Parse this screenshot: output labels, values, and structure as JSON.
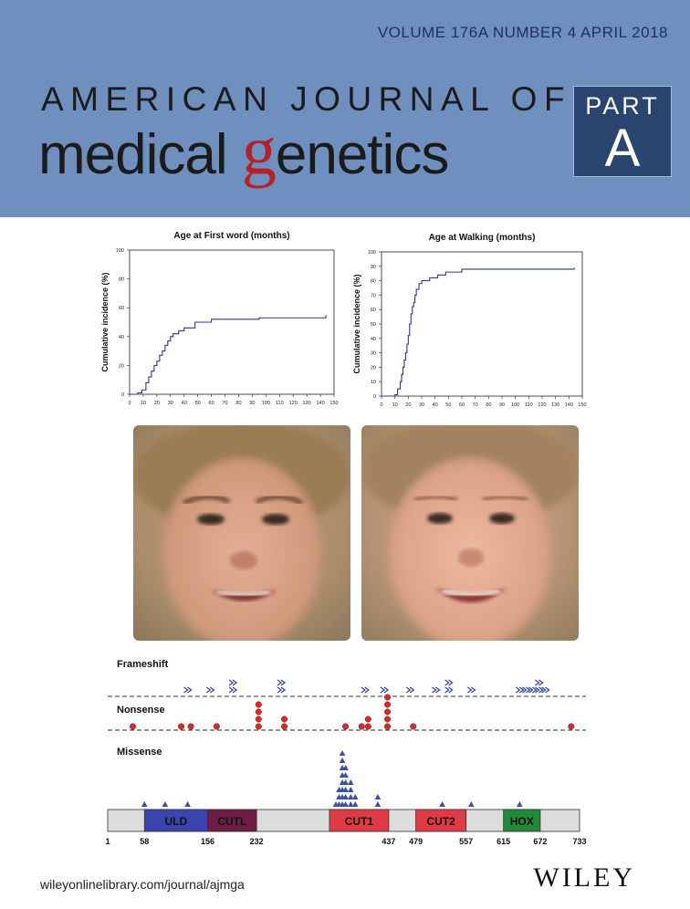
{
  "header": {
    "issue": "VOLUME 176A   NUMBER 4   APRIL 2018",
    "title_line1": "AMERICAN JOURNAL OF",
    "title_line2_pre": "medical ",
    "title_line2_g": "g",
    "title_line2_post": "enetics",
    "part_label": "PART",
    "part_letter": "A"
  },
  "colors": {
    "banner": "#6f8fbf",
    "accent_red": "#b3222a",
    "series": "#2b3a8f",
    "marker_red": "#cc2f2f",
    "marker_blue": "#3d4fa3"
  },
  "chart_data": [
    {
      "type": "line",
      "title": "Age at First word (months)",
      "ylabel": "Cumulative incidence (%)",
      "xlabel": "",
      "xlim": [
        0,
        150
      ],
      "ylim": [
        0,
        100
      ],
      "xticks": [
        0,
        10,
        20,
        30,
        40,
        50,
        60,
        70,
        80,
        90,
        100,
        110,
        120,
        130,
        140,
        150
      ],
      "yticks": [
        0,
        20,
        40,
        60,
        80,
        100
      ],
      "grid": false,
      "step": true,
      "x": [
        0,
        6,
        9,
        12,
        14,
        16,
        18,
        20,
        22,
        24,
        26,
        28,
        30,
        32,
        36,
        40,
        48,
        60,
        95,
        144
      ],
      "y": [
        0,
        1,
        3,
        8,
        12,
        16,
        20,
        23,
        27,
        30,
        34,
        37,
        40,
        42,
        44,
        46,
        50,
        52,
        53,
        55
      ]
    },
    {
      "type": "line",
      "title": "Age at Walking (months)",
      "ylabel": "Cumulative incidence (%)",
      "xlabel": "",
      "xlim": [
        0,
        150
      ],
      "ylim": [
        0,
        100
      ],
      "xticks": [
        0,
        10,
        20,
        30,
        40,
        50,
        60,
        70,
        80,
        90,
        100,
        110,
        120,
        130,
        140,
        150
      ],
      "yticks": [
        0,
        10,
        20,
        30,
        40,
        50,
        60,
        70,
        80,
        90,
        100
      ],
      "grid": false,
      "step": true,
      "x": [
        0,
        10,
        12,
        14,
        15,
        16,
        17,
        18,
        19,
        20,
        21,
        22,
        23,
        24,
        25,
        26,
        28,
        30,
        36,
        42,
        48,
        60,
        144
      ],
      "y": [
        0,
        1,
        5,
        10,
        15,
        20,
        25,
        30,
        36,
        42,
        50,
        57,
        62,
        65,
        70,
        74,
        78,
        80,
        82,
        84,
        86,
        88,
        89
      ]
    }
  ],
  "faces": [
    {
      "name": "composite-face-left",
      "expression": "smile"
    },
    {
      "name": "composite-face-right",
      "expression": "smile"
    }
  ],
  "protein": {
    "categories": [
      "Frameshift",
      "Nonsense",
      "Missense"
    ],
    "domains": [
      {
        "label": "ULD",
        "start": 58,
        "end": 156,
        "color": "#3c44b0"
      },
      {
        "label": "CUTL",
        "start": 156,
        "end": 232,
        "color": "#6e1e44"
      },
      {
        "label": "CUT1",
        "start": 345,
        "end": 437,
        "color": "#e03b45"
      },
      {
        "label": "CUT2",
        "start": 479,
        "end": 557,
        "color": "#e03b45"
      },
      {
        "label": "HOX",
        "start": 615,
        "end": 672,
        "color": "#1f8a38"
      }
    ],
    "positions": [
      "1",
      "58",
      "156",
      "232",
      "437",
      "479",
      "557",
      "615",
      "672",
      "733"
    ],
    "length": 733,
    "frameshift": [
      {
        "pos": 125,
        "count": 1
      },
      {
        "pos": 160,
        "count": 1
      },
      {
        "pos": 195,
        "count": 2
      },
      {
        "pos": 270,
        "count": 2
      },
      {
        "pos": 400,
        "count": 1
      },
      {
        "pos": 430,
        "count": 1
      },
      {
        "pos": 470,
        "count": 1
      },
      {
        "pos": 510,
        "count": 1
      },
      {
        "pos": 530,
        "count": 2
      },
      {
        "pos": 565,
        "count": 1
      },
      {
        "pos": 640,
        "count": 1
      },
      {
        "pos": 650,
        "count": 1
      },
      {
        "pos": 660,
        "count": 1
      },
      {
        "pos": 670,
        "count": 2
      },
      {
        "pos": 680,
        "count": 1
      }
    ],
    "nonsense": [
      {
        "pos": 40,
        "count": 1
      },
      {
        "pos": 115,
        "count": 1
      },
      {
        "pos": 130,
        "count": 1
      },
      {
        "pos": 170,
        "count": 1
      },
      {
        "pos": 235,
        "count": 4
      },
      {
        "pos": 275,
        "count": 2
      },
      {
        "pos": 370,
        "count": 1
      },
      {
        "pos": 395,
        "count": 1
      },
      {
        "pos": 405,
        "count": 2
      },
      {
        "pos": 435,
        "count": 5
      },
      {
        "pos": 475,
        "count": 1
      },
      {
        "pos": 720,
        "count": 1
      }
    ],
    "missense": [
      {
        "pos": 58,
        "count": 1
      },
      {
        "pos": 90,
        "count": 1
      },
      {
        "pos": 125,
        "count": 1
      },
      {
        "pos": 355,
        "count": 1
      },
      {
        "pos": 360,
        "count": 3
      },
      {
        "pos": 365,
        "count": 8
      },
      {
        "pos": 370,
        "count": 6
      },
      {
        "pos": 378,
        "count": 4
      },
      {
        "pos": 385,
        "count": 2
      },
      {
        "pos": 420,
        "count": 2
      },
      {
        "pos": 520,
        "count": 1
      },
      {
        "pos": 565,
        "count": 1
      },
      {
        "pos": 640,
        "count": 1
      }
    ]
  },
  "footer": {
    "url": "wileyonlinelibrary.com/journal/ajmga",
    "publisher": "WILEY"
  }
}
